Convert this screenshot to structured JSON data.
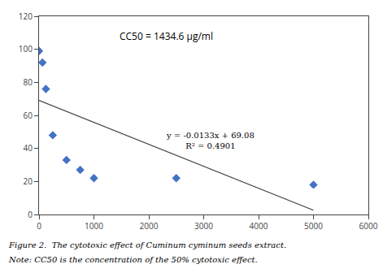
{
  "chart_data": {
    "type": "scatter",
    "x": [
      0,
      62.5,
      125,
      250,
      500,
      750,
      1000,
      2500,
      5000
    ],
    "values": [
      99,
      92,
      76,
      48,
      33,
      27,
      22,
      22,
      18
    ],
    "color": "#4472C4",
    "marker": "diamond",
    "trend_line": {
      "type": "line",
      "x": [
        0,
        5000
      ],
      "values": [
        69.08,
        2.58
      ],
      "color": "#404040",
      "line_style": "solid"
    },
    "xlim": [
      0,
      6000
    ],
    "ylim": [
      0,
      120
    ],
    "xticks": [
      0,
      1000,
      2000,
      3000,
      4000,
      5000,
      6000
    ],
    "yticks": [
      0,
      20,
      40,
      60,
      80,
      100,
      120
    ],
    "grid": false,
    "equation": [
      "y = -0.0133x + 69.08",
      "R² = 0.4901"
    ],
    "cc50_label": "CC50 = 1434.6 μg/ml",
    "caption": [
      "Figure 2.  The cytotoxic effect of Cuminum cyminum seeds extract.",
      "Note: CC50 is the concentration of the 50% cytotoxic effect."
    ]
  }
}
